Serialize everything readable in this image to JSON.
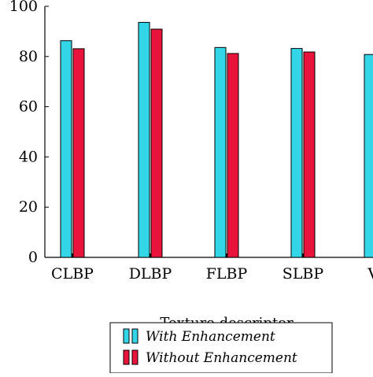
{
  "chart_data": {
    "type": "bar",
    "xlabel": "Texture descriptor",
    "ylabel": "",
    "ylim": [
      0,
      100
    ],
    "yticks": [
      0,
      20,
      40,
      60,
      80,
      100
    ],
    "categories": [
      "CLBP",
      "DLBP",
      "FLBP",
      "SLBP",
      "VLBP"
    ],
    "visible_category_labels": [
      "CLBP",
      "DLBP",
      "FLBP",
      "SLBP",
      "VI"
    ],
    "series": [
      {
        "name": "With Enhancement",
        "color": "#33d6e6",
        "values": [
          86.3,
          93.6,
          83.6,
          83.2,
          80.8
        ]
      },
      {
        "name": "Without Enhancement",
        "color": "#e8143c",
        "values": [
          83.1,
          90.9,
          81.2,
          81.8,
          null
        ]
      }
    ],
    "legend": {
      "position": "bottom-right"
    },
    "grid": false
  }
}
